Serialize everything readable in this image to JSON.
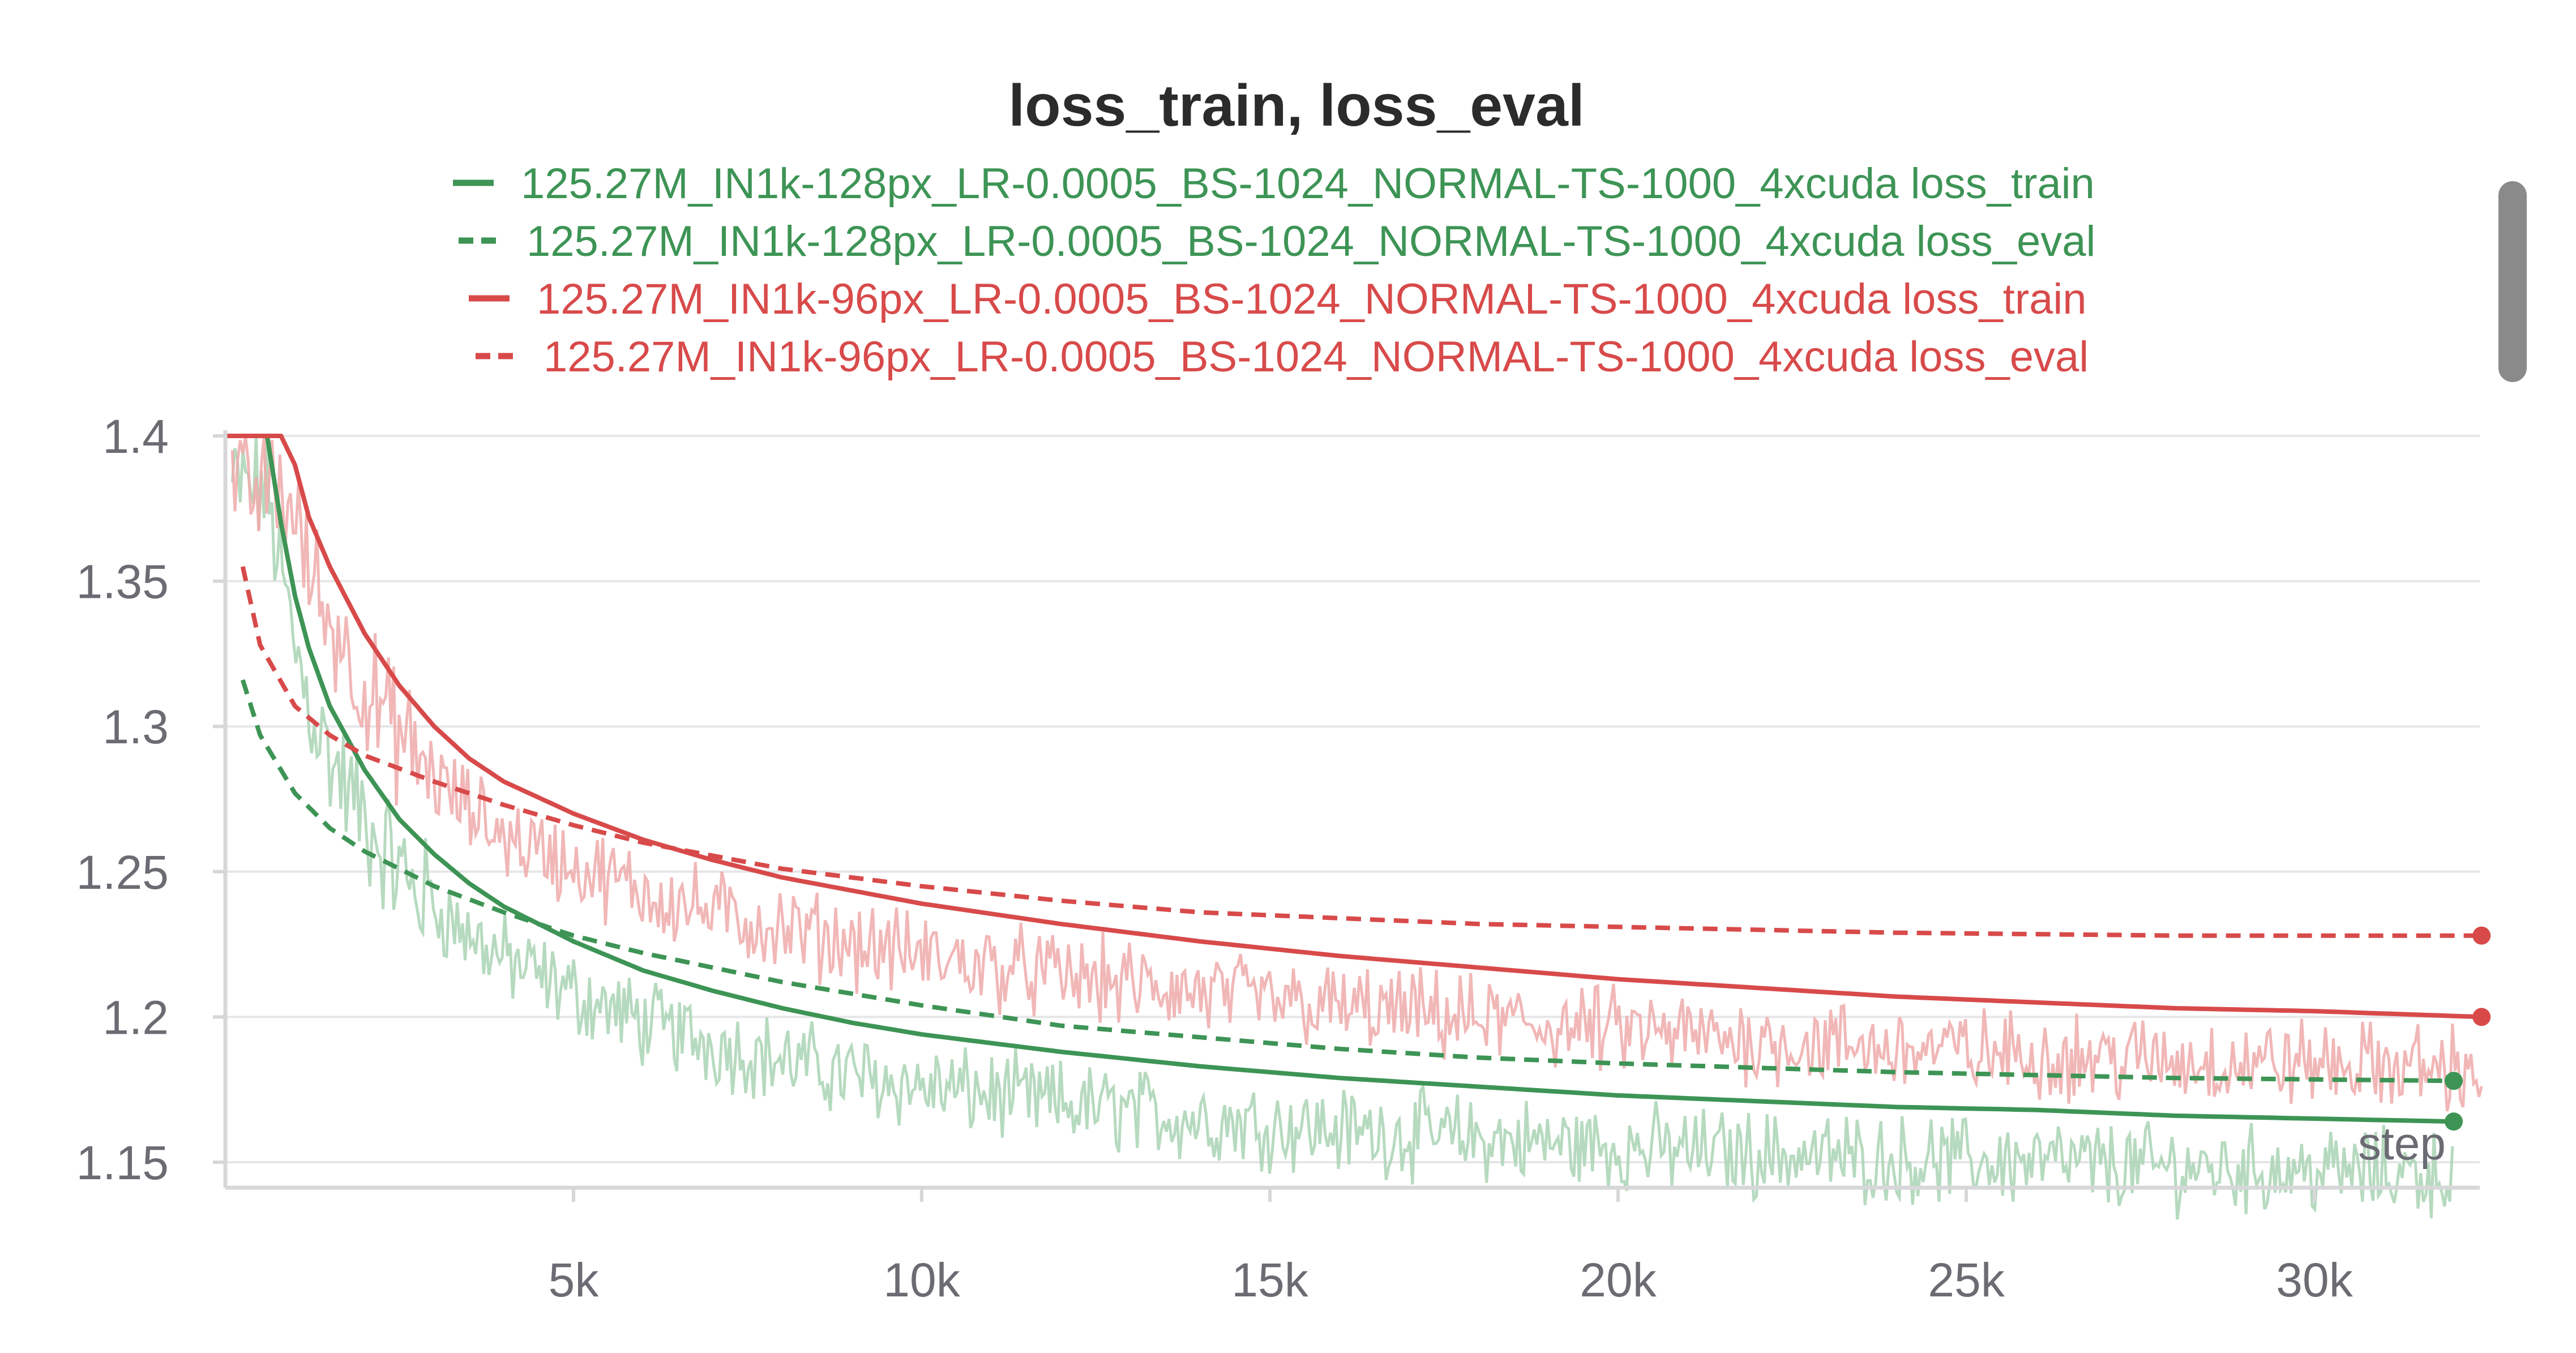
{
  "chart_data": {
    "type": "line",
    "title": "loss_train, loss_eval",
    "xlabel": "step",
    "ylabel": "",
    "xlim": [
      0,
      32500
    ],
    "ylim": [
      1.143,
      1.4
    ],
    "x_ticks": [
      {
        "value": 5000,
        "label": "5k"
      },
      {
        "value": 10000,
        "label": "10k"
      },
      {
        "value": 15000,
        "label": "15k"
      },
      {
        "value": 20000,
        "label": "20k"
      },
      {
        "value": 25000,
        "label": "25k"
      },
      {
        "value": 30000,
        "label": "30k"
      }
    ],
    "y_ticks": [
      {
        "value": 1.4,
        "label": "1.4"
      },
      {
        "value": 1.35,
        "label": "1.35"
      },
      {
        "value": 1.3,
        "label": "1.3"
      },
      {
        "value": 1.25,
        "label": "1.25"
      },
      {
        "value": 1.2,
        "label": "1.2"
      },
      {
        "value": 1.15,
        "label": "1.15"
      }
    ],
    "grid": true,
    "legend_position": "top-center",
    "series": [
      {
        "name": "125.27M_IN1k-128px_LR-0.0005_BS-1024_NORMAL-TS-1000_4xcuda loss_train",
        "color": "#3d9455",
        "style": "solid",
        "raw_color": "#a9d3b4",
        "x": [
          0,
          300,
          600,
          800,
          1000,
          1200,
          1500,
          2000,
          2500,
          3000,
          3500,
          4000,
          5000,
          6000,
          7000,
          8000,
          9000,
          10000,
          12000,
          14000,
          16000,
          18000,
          20000,
          22000,
          24000,
          26000,
          28000,
          30000,
          32000
        ],
        "y": [
          1.4,
          1.4,
          1.4,
          1.37,
          1.345,
          1.327,
          1.307,
          1.285,
          1.268,
          1.256,
          1.246,
          1.238,
          1.226,
          1.216,
          1.209,
          1.203,
          1.198,
          1.194,
          1.188,
          1.183,
          1.179,
          1.176,
          1.173,
          1.171,
          1.169,
          1.168,
          1.166,
          1.165,
          1.164
        ]
      },
      {
        "name": "125.27M_IN1k-128px_LR-0.0005_BS-1024_NORMAL-TS-1000_4xcuda loss_eval",
        "color": "#3d9455",
        "style": "dashed",
        "x": [
          250,
          500,
          1000,
          1500,
          2000,
          3000,
          4000,
          5000,
          6000,
          8000,
          10000,
          12000,
          14000,
          16000,
          18000,
          20000,
          24000,
          28000,
          32000
        ],
        "y": [
          1.316,
          1.297,
          1.277,
          1.265,
          1.257,
          1.245,
          1.236,
          1.228,
          1.222,
          1.212,
          1.204,
          1.197,
          1.193,
          1.189,
          1.186,
          1.184,
          1.181,
          1.179,
          1.178
        ]
      },
      {
        "name": "125.27M_IN1k-96px_LR-0.0005_BS-1024_NORMAL-TS-1000_4xcuda loss_train",
        "color": "#d84a4a",
        "style": "solid",
        "raw_color": "#eeaaaa",
        "x": [
          0,
          500,
          800,
          1000,
          1200,
          1500,
          2000,
          2500,
          3000,
          3500,
          4000,
          5000,
          6000,
          7000,
          8000,
          10000,
          12000,
          14000,
          16000,
          18000,
          20000,
          22000,
          24000,
          26000,
          28000,
          30000,
          32400
        ],
        "y": [
          1.4,
          1.4,
          1.4,
          1.39,
          1.372,
          1.355,
          1.332,
          1.314,
          1.3,
          1.289,
          1.281,
          1.27,
          1.261,
          1.254,
          1.248,
          1.239,
          1.232,
          1.226,
          1.221,
          1.217,
          1.213,
          1.21,
          1.207,
          1.205,
          1.203,
          1.202,
          1.2
        ]
      },
      {
        "name": "125.27M_IN1k-96px_LR-0.0005_BS-1024_NORMAL-TS-1000_4xcuda loss_eval",
        "color": "#d84a4a",
        "style": "dashed",
        "x": [
          250,
          500,
          1000,
          1500,
          2000,
          3000,
          4000,
          5000,
          6000,
          8000,
          10000,
          12000,
          14000,
          16000,
          18000,
          20000,
          24000,
          28000,
          32400
        ],
        "y": [
          1.355,
          1.328,
          1.307,
          1.297,
          1.29,
          1.281,
          1.273,
          1.266,
          1.26,
          1.251,
          1.245,
          1.24,
          1.236,
          1.234,
          1.232,
          1.231,
          1.229,
          1.228,
          1.228
        ]
      }
    ]
  }
}
